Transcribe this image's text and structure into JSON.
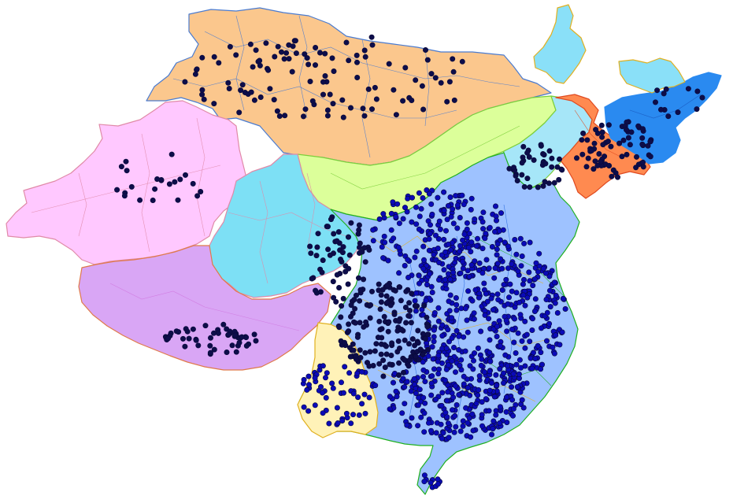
{
  "map": {
    "colors": {
      "background": "#ffffff",
      "mongolia": "#fbc78d",
      "mongolia_border": "#4a7bd0",
      "inner_north": "#dcff9a",
      "inner_north_border": "#7ccf3a",
      "northwest": "#ffc8ff",
      "northwest_border": "#e08aa8",
      "tibet": "#d9a6f5",
      "tibet_border": "#e07a4a",
      "qinghai": "#7de0f5",
      "qinghai_border": "#e08aa8",
      "northeast_cyan": "#a6e6f8",
      "korea": "#ff8a50",
      "korea_border": "#e04a20",
      "japan": "#2a8af0",
      "sakhalin": "#8ae0f8",
      "china_proper": "#9ec2ff",
      "southwest_yellow": "#fff2b8",
      "border_yellow": "#e0b020",
      "border_green": "#20b020",
      "dot_dark": "#0d0d4a",
      "dot_blue": "#0a0ab8"
    }
  }
}
